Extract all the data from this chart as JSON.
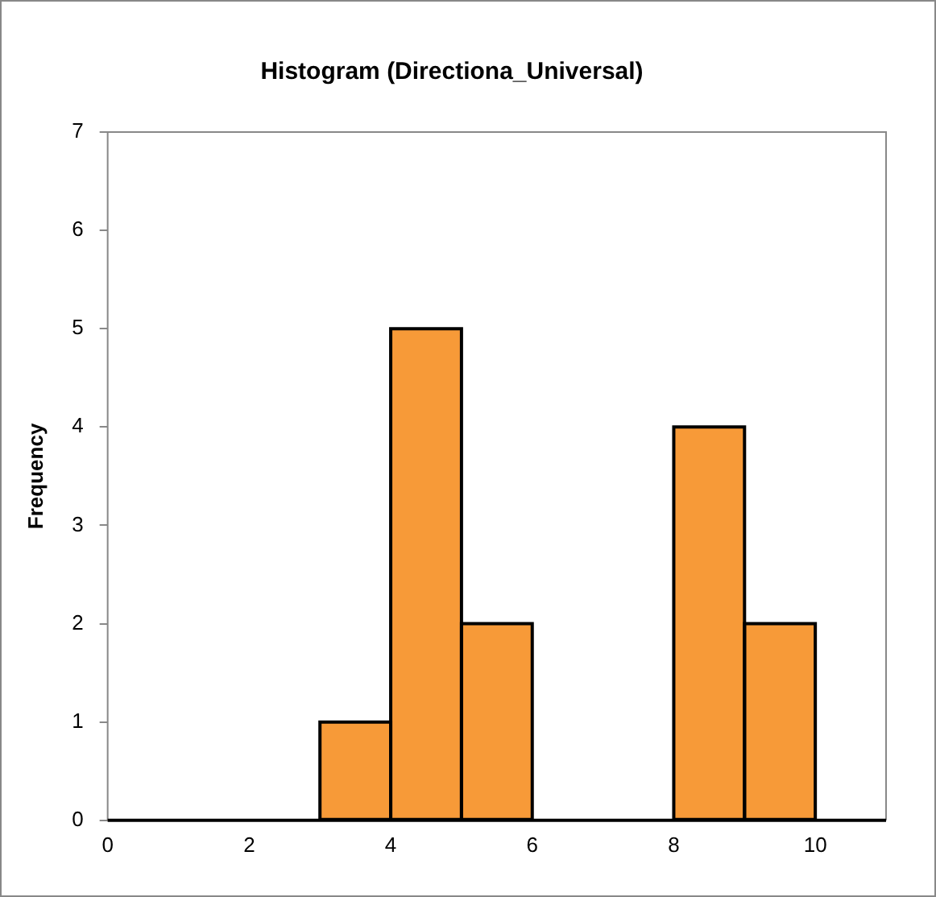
{
  "chart_data": {
    "type": "histogram",
    "title": "Histogram (Directiona_Universal)",
    "ylabel": "Frequency",
    "bins": [
      0,
      1,
      2,
      3,
      4,
      5,
      6,
      7,
      8,
      9,
      10,
      11
    ],
    "values": [
      0,
      0,
      0,
      1,
      5,
      2,
      0,
      0,
      4,
      2,
      0
    ],
    "color": "#f79a38",
    "xlim": [
      0,
      11
    ],
    "xticks": [
      0,
      2,
      4,
      6,
      8,
      10
    ],
    "ylim": [
      0,
      7
    ],
    "yticks": [
      0,
      1,
      2,
      3,
      4,
      5,
      6,
      7
    ],
    "grid": false,
    "legend": false
  }
}
